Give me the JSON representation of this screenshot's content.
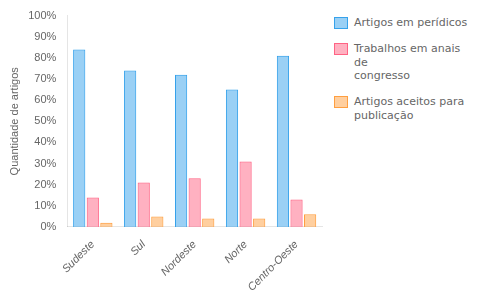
{
  "chart_data": {
    "type": "bar",
    "categories": [
      "Sudeste",
      "Sul",
      "Nordeste",
      "Norte",
      "Centro-Oeste"
    ],
    "series": [
      {
        "name": "Artigos em perídicos",
        "values": [
          0.84,
          0.74,
          0.72,
          0.65,
          0.81
        ]
      },
      {
        "name": "Trabalhos em anais de\ncongresso",
        "values": [
          0.14,
          0.21,
          0.23,
          0.31,
          0.13
        ]
      },
      {
        "name": "Artigos aceitos para\npublicação",
        "values": [
          0.02,
          0.05,
          0.04,
          0.04,
          0.06
        ]
      }
    ],
    "ylabel": "Quantidade de artigos",
    "ylim": [
      0,
      1.0
    ],
    "yticks": [
      {
        "value": 0.0,
        "label": "0%"
      },
      {
        "value": 0.1,
        "label": "10%"
      },
      {
        "value": 0.2,
        "label": "20%"
      },
      {
        "value": 0.3,
        "label": "30%"
      },
      {
        "value": 0.4,
        "label": "40%"
      },
      {
        "value": 0.5,
        "label": "50%"
      },
      {
        "value": 0.6,
        "label": "60%"
      },
      {
        "value": 0.7,
        "label": "70%"
      },
      {
        "value": 0.8,
        "label": "80%"
      },
      {
        "value": 0.9,
        "label": "90%"
      },
      {
        "value": 1.0,
        "label": "100%"
      }
    ],
    "grid": false,
    "legend": "right"
  }
}
